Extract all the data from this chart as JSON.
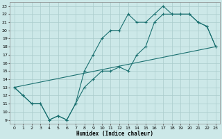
{
  "xlabel": "Humidex (Indice chaleur)",
  "bg_color": "#cce8e8",
  "grid_color": "#aacccc",
  "line_color": "#1a7070",
  "xlim": [
    -0.5,
    23.5
  ],
  "ylim": [
    8.5,
    23.5
  ],
  "yticks": [
    9,
    10,
    11,
    12,
    13,
    14,
    15,
    16,
    17,
    18,
    19,
    20,
    21,
    22,
    23
  ],
  "xticks": [
    0,
    1,
    2,
    3,
    4,
    5,
    6,
    7,
    8,
    9,
    10,
    11,
    12,
    13,
    14,
    15,
    16,
    17,
    18,
    19,
    20,
    21,
    22,
    23
  ],
  "line1_x": [
    0,
    1,
    2,
    3,
    4,
    5,
    6,
    7,
    8,
    9,
    10,
    11,
    12,
    13,
    14,
    15,
    16,
    17,
    18,
    19,
    20,
    21,
    22,
    23
  ],
  "line1_y": [
    13,
    12,
    11,
    11,
    9,
    9.5,
    9,
    11,
    15,
    17,
    19,
    20,
    20,
    22,
    21,
    21,
    22,
    23,
    22,
    22,
    22,
    21,
    20.5,
    18
  ],
  "line2_x": [
    0,
    1,
    2,
    3,
    4,
    5,
    6,
    7,
    8,
    9,
    10,
    11,
    12,
    13,
    14,
    15,
    16,
    17,
    18,
    19,
    20,
    21,
    22,
    23
  ],
  "line2_y": [
    13,
    12,
    11,
    11,
    9,
    9.5,
    9,
    11,
    13,
    14,
    15,
    15,
    15.5,
    15,
    17,
    18,
    21,
    22,
    22,
    22,
    22,
    21,
    20.5,
    18
  ],
  "line3_x": [
    0,
    23
  ],
  "line3_y": [
    13,
    18
  ]
}
